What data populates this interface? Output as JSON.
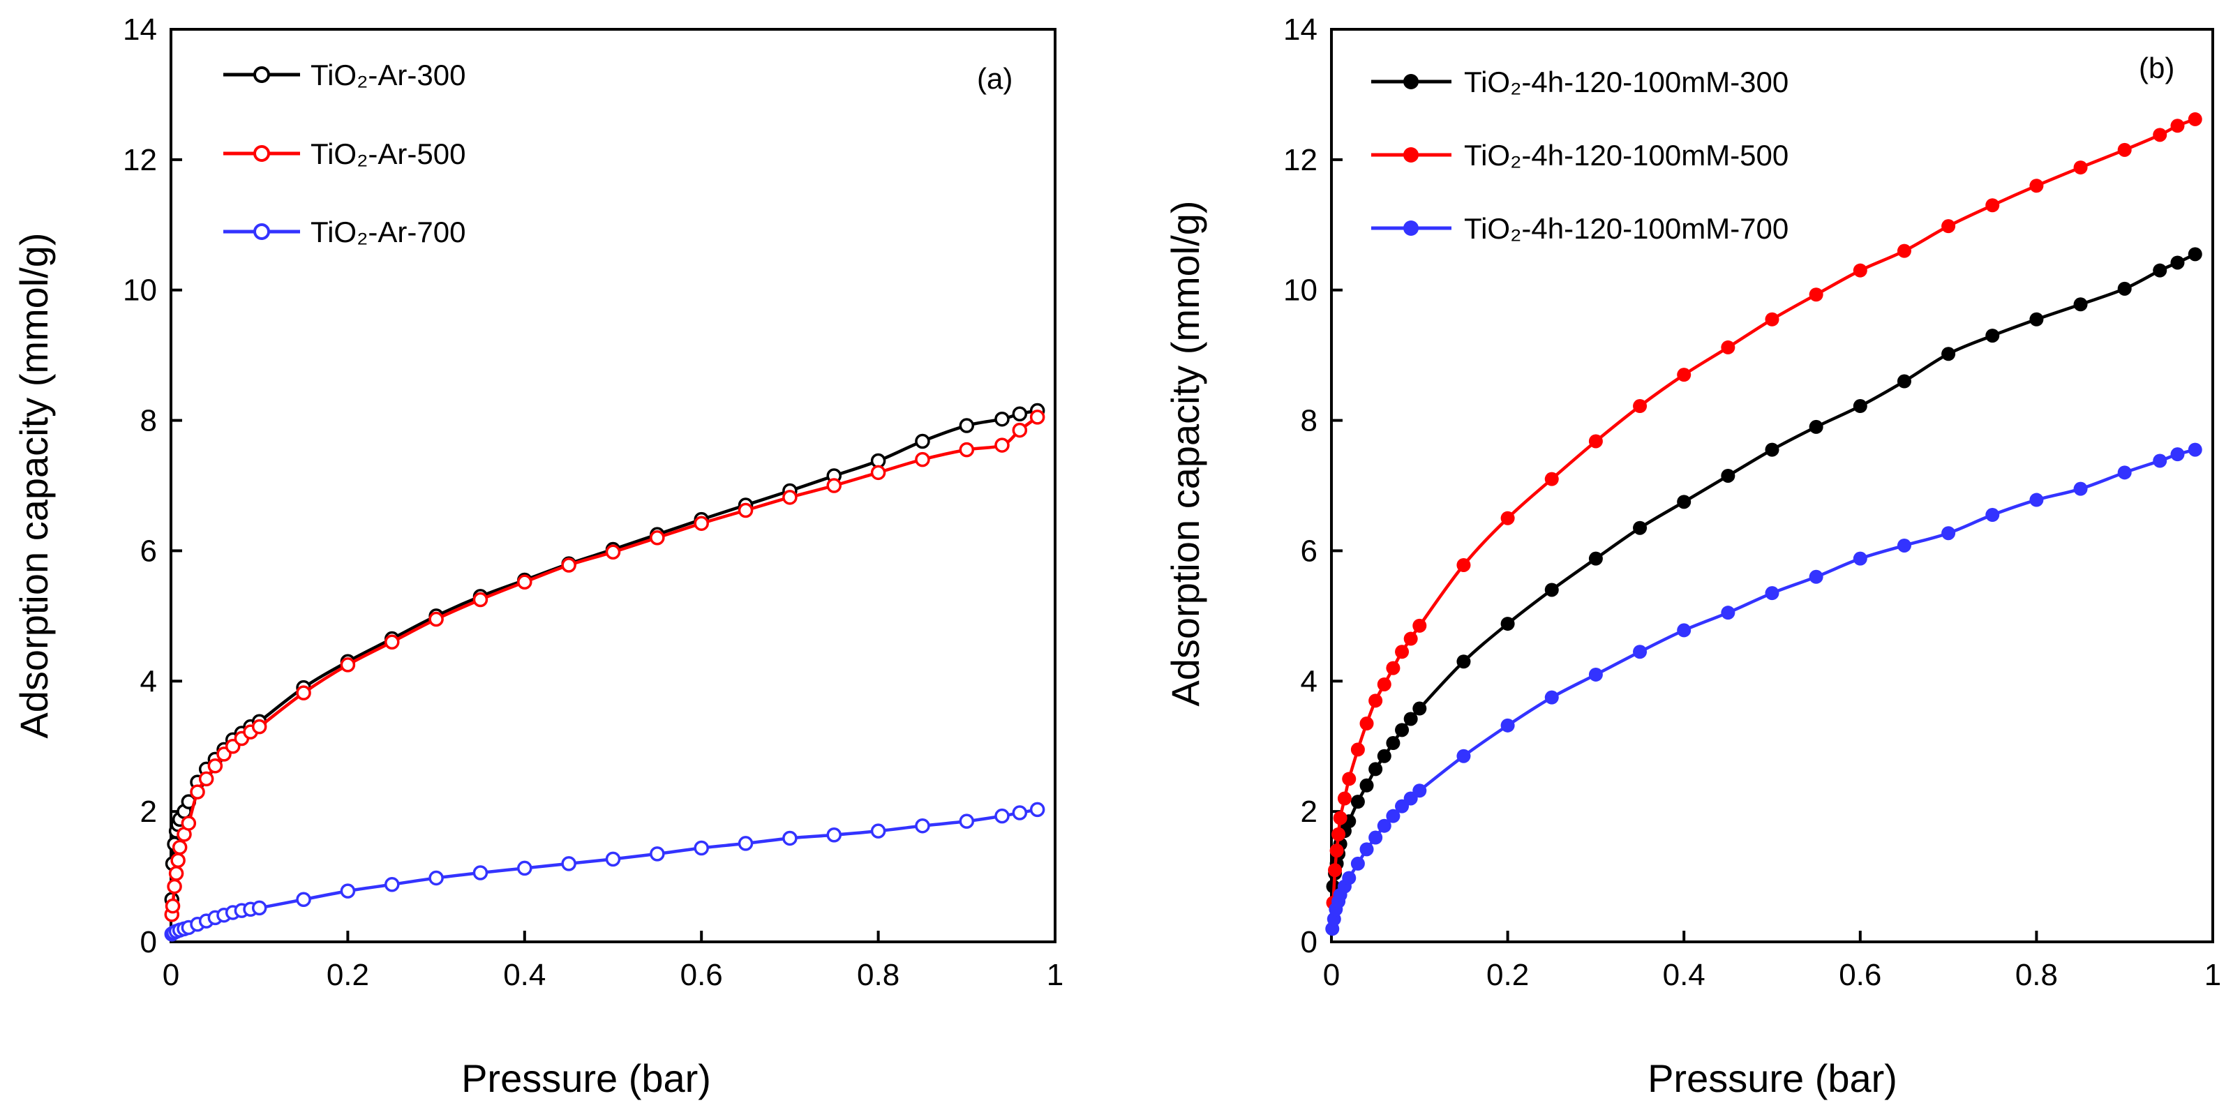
{
  "chart_data": [
    {
      "type": "line",
      "panel_label": "(a)",
      "xlabel": "Pressure (bar)",
      "ylabel": "Adsorption capacity (mmol/g)",
      "xlim": [
        0,
        1
      ],
      "ylim": [
        0,
        14
      ],
      "xticks": [
        0,
        0.2,
        0.4,
        0.6,
        0.8,
        1
      ],
      "xtick_labels": [
        "0",
        "0.2",
        "0.4",
        "0.6",
        "0.8",
        "1"
      ],
      "yticks": [
        0,
        2,
        4,
        6,
        8,
        10,
        12,
        14
      ],
      "ytick_labels": [
        "0",
        "2",
        "4",
        "6",
        "8",
        "10",
        "12",
        "14"
      ],
      "legend_position": "top-left",
      "marker": "open-circle",
      "series": [
        {
          "name": "TiO₂-Ar-300",
          "color": "#000000",
          "x": [
            0.001,
            0.002,
            0.004,
            0.006,
            0.008,
            0.01,
            0.015,
            0.02,
            0.03,
            0.04,
            0.05,
            0.06,
            0.07,
            0.08,
            0.09,
            0.1,
            0.15,
            0.2,
            0.25,
            0.3,
            0.35,
            0.4,
            0.45,
            0.5,
            0.55,
            0.6,
            0.65,
            0.7,
            0.75,
            0.8,
            0.85,
            0.9,
            0.94,
            0.96,
            0.98
          ],
          "y": [
            0.65,
            1.2,
            1.5,
            1.7,
            1.8,
            1.88,
            2.0,
            2.15,
            2.45,
            2.65,
            2.8,
            2.95,
            3.1,
            3.2,
            3.3,
            3.38,
            3.9,
            4.3,
            4.65,
            5.0,
            5.3,
            5.55,
            5.8,
            6.02,
            6.25,
            6.48,
            6.7,
            6.92,
            7.15,
            7.38,
            7.68,
            7.92,
            8.02,
            8.1,
            8.15
          ]
        },
        {
          "name": "TiO₂-Ar-500",
          "color": "#ff0000",
          "x": [
            0.001,
            0.002,
            0.004,
            0.006,
            0.008,
            0.01,
            0.015,
            0.02,
            0.03,
            0.04,
            0.05,
            0.06,
            0.07,
            0.08,
            0.09,
            0.1,
            0.15,
            0.2,
            0.25,
            0.3,
            0.35,
            0.4,
            0.45,
            0.5,
            0.55,
            0.6,
            0.65,
            0.7,
            0.75,
            0.8,
            0.85,
            0.9,
            0.94,
            0.96,
            0.98
          ],
          "y": [
            0.42,
            0.55,
            0.85,
            1.05,
            1.25,
            1.45,
            1.65,
            1.82,
            2.3,
            2.5,
            2.7,
            2.88,
            3.0,
            3.12,
            3.22,
            3.3,
            3.82,
            4.25,
            4.6,
            4.95,
            5.25,
            5.52,
            5.78,
            5.98,
            6.2,
            6.42,
            6.62,
            6.82,
            7.0,
            7.2,
            7.4,
            7.55,
            7.62,
            7.85,
            8.05
          ]
        },
        {
          "name": "TiO₂-Ar-700",
          "color": "#3333ff",
          "x": [
            0.001,
            0.003,
            0.006,
            0.01,
            0.015,
            0.02,
            0.03,
            0.04,
            0.05,
            0.06,
            0.07,
            0.08,
            0.09,
            0.1,
            0.15,
            0.2,
            0.25,
            0.3,
            0.35,
            0.4,
            0.45,
            0.5,
            0.55,
            0.6,
            0.65,
            0.7,
            0.75,
            0.8,
            0.85,
            0.9,
            0.94,
            0.96,
            0.98
          ],
          "y": [
            0.12,
            0.14,
            0.16,
            0.18,
            0.2,
            0.22,
            0.27,
            0.32,
            0.37,
            0.41,
            0.45,
            0.48,
            0.5,
            0.52,
            0.65,
            0.78,
            0.88,
            0.98,
            1.06,
            1.13,
            1.2,
            1.27,
            1.35,
            1.44,
            1.51,
            1.59,
            1.64,
            1.7,
            1.78,
            1.85,
            1.93,
            1.98,
            2.03
          ]
        }
      ]
    },
    {
      "type": "line",
      "panel_label": "(b)",
      "xlabel": "Pressure (bar)",
      "ylabel": "Adsorption  capacity (mmol/g)",
      "xlim": [
        0,
        1
      ],
      "ylim": [
        0,
        14
      ],
      "xticks": [
        0,
        0.2,
        0.4,
        0.6,
        0.8,
        1
      ],
      "xtick_labels": [
        "0",
        "0.2",
        "0.4",
        "0.6",
        "0.8",
        "1"
      ],
      "yticks": [
        0,
        2,
        4,
        6,
        8,
        10,
        12,
        14
      ],
      "ytick_labels": [
        "0",
        "2",
        "4",
        "6",
        "8",
        "10",
        "12",
        "14"
      ],
      "legend_position": "top-left",
      "marker": "filled-circle",
      "series": [
        {
          "name": "TiO₂-4h-120-100mM-300",
          "color": "#000000",
          "x": [
            0.002,
            0.004,
            0.006,
            0.008,
            0.01,
            0.015,
            0.02,
            0.03,
            0.04,
            0.05,
            0.06,
            0.07,
            0.08,
            0.09,
            0.1,
            0.15,
            0.2,
            0.25,
            0.3,
            0.35,
            0.4,
            0.45,
            0.5,
            0.55,
            0.6,
            0.65,
            0.7,
            0.75,
            0.8,
            0.85,
            0.9,
            0.94,
            0.96,
            0.98
          ],
          "y": [
            0.85,
            1.05,
            1.2,
            1.35,
            1.5,
            1.7,
            1.85,
            2.15,
            2.4,
            2.65,
            2.85,
            3.05,
            3.25,
            3.42,
            3.58,
            4.3,
            4.88,
            5.4,
            5.88,
            6.35,
            6.75,
            7.15,
            7.55,
            7.9,
            8.22,
            8.6,
            9.02,
            9.3,
            9.55,
            9.78,
            10.02,
            10.3,
            10.42,
            10.55
          ]
        },
        {
          "name": "TiO₂-4h-120-100mM-500",
          "color": "#ff0000",
          "x": [
            0.002,
            0.004,
            0.006,
            0.008,
            0.01,
            0.015,
            0.02,
            0.03,
            0.04,
            0.05,
            0.06,
            0.07,
            0.08,
            0.09,
            0.1,
            0.15,
            0.2,
            0.25,
            0.3,
            0.35,
            0.4,
            0.45,
            0.5,
            0.55,
            0.6,
            0.65,
            0.7,
            0.75,
            0.8,
            0.85,
            0.9,
            0.94,
            0.96,
            0.98
          ],
          "y": [
            0.6,
            1.1,
            1.4,
            1.65,
            1.9,
            2.2,
            2.5,
            2.95,
            3.35,
            3.7,
            3.95,
            4.2,
            4.45,
            4.65,
            4.85,
            5.78,
            6.5,
            7.1,
            7.68,
            8.22,
            8.7,
            9.12,
            9.55,
            9.93,
            10.3,
            10.6,
            10.98,
            11.3,
            11.6,
            11.88,
            12.15,
            12.38,
            12.52,
            12.62
          ]
        },
        {
          "name": "TiO₂-4h-120-100mM-700",
          "color": "#3333ff",
          "x": [
            0.001,
            0.003,
            0.005,
            0.008,
            0.01,
            0.015,
            0.02,
            0.03,
            0.04,
            0.05,
            0.06,
            0.07,
            0.08,
            0.09,
            0.1,
            0.15,
            0.2,
            0.25,
            0.3,
            0.35,
            0.4,
            0.45,
            0.5,
            0.55,
            0.6,
            0.65,
            0.7,
            0.75,
            0.8,
            0.85,
            0.9,
            0.94,
            0.96,
            0.98
          ],
          "y": [
            0.2,
            0.35,
            0.5,
            0.62,
            0.72,
            0.85,
            0.98,
            1.2,
            1.42,
            1.6,
            1.78,
            1.93,
            2.08,
            2.2,
            2.32,
            2.85,
            3.32,
            3.75,
            4.1,
            4.45,
            4.78,
            5.05,
            5.35,
            5.6,
            5.88,
            6.08,
            6.27,
            6.55,
            6.78,
            6.95,
            7.2,
            7.38,
            7.48,
            7.55
          ]
        }
      ]
    }
  ]
}
